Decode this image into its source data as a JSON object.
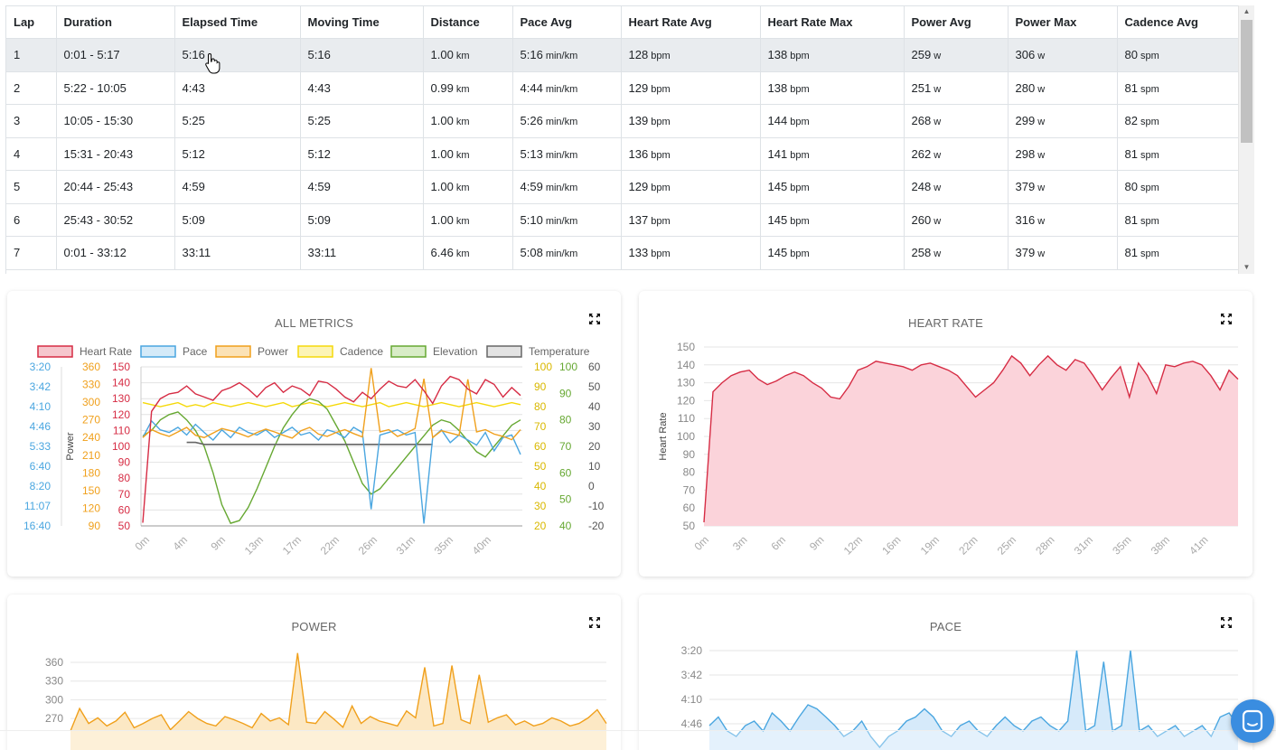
{
  "laps_table": {
    "columns": [
      "Lap",
      "Duration",
      "Elapsed Time",
      "Moving Time",
      "Distance",
      "Pace Avg",
      "Heart Rate Avg",
      "Heart Rate Max",
      "Power Avg",
      "Power Max",
      "Cadence Avg"
    ],
    "rows": [
      {
        "lap": "1",
        "duration": "0:01 - 5:17",
        "elapsed": "5:16",
        "moving": "5:16",
        "distance": "1.00",
        "distance_unit": "km",
        "pace": "5:16",
        "pace_unit": "min/km",
        "hr_avg": "128",
        "hr_avg_unit": "bpm",
        "hr_max": "138",
        "hr_max_unit": "bpm",
        "power_avg": "259",
        "power_avg_unit": "w",
        "power_max": "306",
        "power_max_unit": "w",
        "cadence": "80",
        "cadence_unit": "spm"
      },
      {
        "lap": "2",
        "duration": "5:22 - 10:05",
        "elapsed": "4:43",
        "moving": "4:43",
        "distance": "0.99",
        "distance_unit": "km",
        "pace": "4:44",
        "pace_unit": "min/km",
        "hr_avg": "129",
        "hr_avg_unit": "bpm",
        "hr_max": "138",
        "hr_max_unit": "bpm",
        "power_avg": "251",
        "power_avg_unit": "w",
        "power_max": "280",
        "power_max_unit": "w",
        "cadence": "81",
        "cadence_unit": "spm"
      },
      {
        "lap": "3",
        "duration": "10:05 - 15:30",
        "elapsed": "5:25",
        "moving": "5:25",
        "distance": "1.00",
        "distance_unit": "km",
        "pace": "5:26",
        "pace_unit": "min/km",
        "hr_avg": "139",
        "hr_avg_unit": "bpm",
        "hr_max": "144",
        "hr_max_unit": "bpm",
        "power_avg": "268",
        "power_avg_unit": "w",
        "power_max": "299",
        "power_max_unit": "w",
        "cadence": "82",
        "cadence_unit": "spm"
      },
      {
        "lap": "4",
        "duration": "15:31 - 20:43",
        "elapsed": "5:12",
        "moving": "5:12",
        "distance": "1.00",
        "distance_unit": "km",
        "pace": "5:13",
        "pace_unit": "min/km",
        "hr_avg": "136",
        "hr_avg_unit": "bpm",
        "hr_max": "141",
        "hr_max_unit": "bpm",
        "power_avg": "262",
        "power_avg_unit": "w",
        "power_max": "298",
        "power_max_unit": "w",
        "cadence": "81",
        "cadence_unit": "spm"
      },
      {
        "lap": "5",
        "duration": "20:44 - 25:43",
        "elapsed": "4:59",
        "moving": "4:59",
        "distance": "1.00",
        "distance_unit": "km",
        "pace": "4:59",
        "pace_unit": "min/km",
        "hr_avg": "129",
        "hr_avg_unit": "bpm",
        "hr_max": "145",
        "hr_max_unit": "bpm",
        "power_avg": "248",
        "power_avg_unit": "w",
        "power_max": "379",
        "power_max_unit": "w",
        "cadence": "80",
        "cadence_unit": "spm"
      },
      {
        "lap": "6",
        "duration": "25:43 - 30:52",
        "elapsed": "5:09",
        "moving": "5:09",
        "distance": "1.00",
        "distance_unit": "km",
        "pace": "5:10",
        "pace_unit": "min/km",
        "hr_avg": "137",
        "hr_avg_unit": "bpm",
        "hr_max": "145",
        "hr_max_unit": "bpm",
        "power_avg": "260",
        "power_avg_unit": "w",
        "power_max": "316",
        "power_max_unit": "w",
        "cadence": "81",
        "cadence_unit": "spm"
      },
      {
        "lap": "7",
        "duration": "0:01 - 33:12",
        "elapsed": "33:11",
        "moving": "33:11",
        "distance": "6.46",
        "distance_unit": "km",
        "pace": "5:08",
        "pace_unit": "min/km",
        "hr_avg": "133",
        "hr_avg_unit": "bpm",
        "hr_max": "145",
        "hr_max_unit": "bpm",
        "power_avg": "258",
        "power_avg_unit": "w",
        "power_max": "379",
        "power_max_unit": "w",
        "cadence": "81",
        "cadence_unit": "spm"
      }
    ]
  },
  "icons": {
    "expand": "expand-arrows-icon",
    "chat": "chat-bubble-icon",
    "cursor": "hand-pointer-icon"
  },
  "colors": {
    "heart_rate": "#d62c44",
    "pace": "#4aa6e0",
    "power": "#f0a01c",
    "cadence": "#f5d90a",
    "elevation": "#66a832",
    "temperature": "#666666",
    "chat": "#3a8de0"
  },
  "chart_data": [
    {
      "type": "line",
      "title": "ALL METRICS",
      "legend": [
        "Heart Rate",
        "Pace",
        "Power",
        "Cadence",
        "Elevation",
        "Temperature"
      ],
      "legend_position": "top",
      "x_ticks": [
        "0m",
        "4m",
        "9m",
        "13m",
        "17m",
        "22m",
        "26m",
        "31m",
        "35m",
        "40m"
      ],
      "axes": {
        "pace": {
          "label": "",
          "ticks": [
            "3:20",
            "3:42",
            "4:10",
            "4:46",
            "5:33",
            "6:40",
            "8:20",
            "11:07",
            "16:40"
          ]
        },
        "power": {
          "label": "Power",
          "ticks": [
            "360",
            "330",
            "300",
            "270",
            "240",
            "210",
            "180",
            "150",
            "120",
            "90"
          ]
        },
        "heart_rate": {
          "label": "",
          "ticks": [
            "150",
            "140",
            "130",
            "120",
            "110",
            "100",
            "90",
            "80",
            "70",
            "60",
            "50"
          ]
        },
        "cadence": {
          "label": "",
          "ticks": [
            "100",
            "90",
            "80",
            "70",
            "60",
            "50",
            "40",
            "30",
            "20"
          ]
        },
        "elevation": {
          "label": "",
          "ticks": [
            "100",
            "90",
            "80",
            "70",
            "60",
            "50",
            "40"
          ]
        },
        "temperature": {
          "label": "",
          "ticks": [
            "60",
            "50",
            "40",
            "30",
            "20",
            "10",
            "0",
            "-10",
            "-20"
          ]
        }
      },
      "series": [
        {
          "name": "Heart Rate",
          "values": [
            52,
            122,
            130,
            133,
            134,
            138,
            133,
            131,
            129,
            135,
            137,
            140,
            136,
            131,
            137,
            140,
            134,
            138,
            136,
            132,
            141,
            140,
            136,
            131,
            128,
            134,
            130,
            136,
            141,
            138,
            137,
            142,
            135,
            127,
            138,
            144,
            142,
            136,
            133,
            142,
            139,
            131,
            137,
            132
          ]
        },
        {
          "name": "Pace",
          "values": [
            5.2,
            4.6,
            4.9,
            5.0,
            4.8,
            5.1,
            4.7,
            5.0,
            5.3,
            4.9,
            5.2,
            4.8,
            5.0,
            5.1,
            4.9,
            5.2,
            5.0,
            4.8,
            5.1,
            5.0,
            5.3,
            4.9,
            5.0,
            5.2,
            4.8,
            5.0,
            12.0,
            5.1,
            5.0,
            4.9,
            5.1,
            5.0,
            16.0,
            5.2,
            4.9,
            5.4,
            5.1,
            5.3,
            5.5,
            5.0,
            5.8,
            5.2,
            5.1,
            6.0
          ]
        },
        {
          "name": "Power",
          "values": [
            248,
            262,
            255,
            250,
            258,
            266,
            252,
            248,
            256,
            264,
            260,
            255,
            249,
            257,
            263,
            258,
            252,
            247,
            260,
            266,
            254,
            250,
            257,
            262,
            255,
            249,
            372,
            258,
            262,
            250,
            256,
            264,
            353,
            248,
            260,
            256,
            252,
            352,
            258,
            262,
            254,
            250,
            244,
            262
          ]
        },
        {
          "name": "Cadence",
          "values": [
            82,
            81,
            80,
            81,
            82,
            80,
            81,
            80,
            82,
            81,
            80,
            81,
            82,
            81,
            80,
            81,
            82,
            80,
            81,
            82,
            81,
            80,
            81,
            82,
            81,
            80,
            81,
            82,
            80,
            81,
            82,
            81,
            80,
            81,
            82,
            81,
            80,
            81,
            82,
            81,
            80,
            81,
            82,
            81
          ]
        },
        {
          "name": "Elevation",
          "values": [
            74,
            76,
            80,
            82,
            83,
            80,
            76,
            70,
            60,
            48,
            41,
            42,
            47,
            54,
            62,
            70,
            77,
            82,
            86,
            88,
            87,
            84,
            78,
            72,
            64,
            56,
            52,
            54,
            58,
            62,
            66,
            70,
            74,
            78,
            80,
            79,
            76,
            72,
            68,
            66,
            70,
            74,
            78,
            80
          ]
        },
        {
          "name": "Temperature",
          "values": [
            null,
            null,
            null,
            null,
            null,
            22,
            22,
            21,
            21,
            21,
            21,
            21,
            21,
            21,
            21,
            21,
            21,
            21,
            21,
            21,
            21,
            21,
            21,
            21,
            21,
            21,
            21,
            21,
            21,
            21,
            21,
            21,
            21,
            21,
            null,
            null,
            null,
            null,
            null,
            null,
            null,
            null,
            null,
            null
          ]
        }
      ]
    },
    {
      "type": "area",
      "title": "HEART RATE",
      "ylabel": "Heart Rate",
      "ylim": [
        50,
        150
      ],
      "y_ticks": [
        "150",
        "140",
        "130",
        "120",
        "110",
        "100",
        "90",
        "80",
        "70",
        "60",
        "50"
      ],
      "x_ticks": [
        "0m",
        "3m",
        "6m",
        "9m",
        "12m",
        "16m",
        "19m",
        "22m",
        "25m",
        "28m",
        "31m",
        "35m",
        "38m",
        "41m"
      ],
      "series": [
        {
          "name": "Heart Rate",
          "values": [
            52,
            125,
            130,
            134,
            136,
            137,
            132,
            129,
            131,
            134,
            136,
            134,
            130,
            127,
            122,
            121,
            128,
            137,
            139,
            142,
            141,
            140,
            139,
            137,
            140,
            141,
            139,
            137,
            134,
            128,
            122,
            126,
            130,
            137,
            145,
            141,
            134,
            140,
            145,
            140,
            137,
            143,
            141,
            134,
            126,
            133,
            139,
            122,
            141,
            134,
            124,
            140,
            139,
            141,
            142,
            140,
            134,
            126,
            137,
            132
          ]
        }
      ]
    },
    {
      "type": "area",
      "title": "POWER",
      "ylabel": "",
      "y_ticks": [
        "360",
        "330",
        "300",
        "270"
      ],
      "series": [
        {
          "name": "Power",
          "values": [
            250,
            286,
            262,
            271,
            258,
            266,
            280,
            255,
            262,
            270,
            276,
            252,
            266,
            281,
            270,
            262,
            258,
            273,
            268,
            262,
            255,
            278,
            266,
            271,
            260,
            375,
            264,
            262,
            281,
            269,
            256,
            290,
            262,
            273,
            266,
            262,
            258,
            282,
            271,
            352,
            258,
            262,
            355,
            268,
            262,
            340,
            264,
            271,
            276,
            260,
            266,
            258,
            262,
            271,
            266,
            258,
            262,
            271,
            284,
            262
          ]
        }
      ]
    },
    {
      "type": "area",
      "title": "PACE",
      "ylabel": "",
      "y_ticks": [
        "3:20",
        "3:42",
        "4:10",
        "4:46"
      ],
      "series": [
        {
          "name": "Pace",
          "values": [
            4.8,
            4.6,
            4.9,
            5.0,
            4.8,
            4.7,
            4.9,
            4.5,
            4.7,
            4.9,
            4.6,
            4.3,
            4.4,
            4.6,
            4.8,
            5.0,
            4.9,
            4.7,
            5.0,
            5.2,
            5.0,
            4.9,
            4.7,
            4.6,
            4.4,
            4.6,
            4.9,
            5.0,
            4.8,
            4.7,
            4.9,
            5.0,
            4.8,
            4.6,
            4.8,
            4.9,
            4.7,
            4.6,
            4.8,
            4.9,
            4.7,
            3.3,
            4.9,
            4.8,
            3.5,
            4.9,
            4.8,
            3.3,
            4.9,
            4.8,
            5.0,
            4.9,
            4.8,
            5.0,
            4.9,
            4.8,
            5.0,
            4.6,
            4.5,
            4.8
          ]
        }
      ]
    }
  ]
}
